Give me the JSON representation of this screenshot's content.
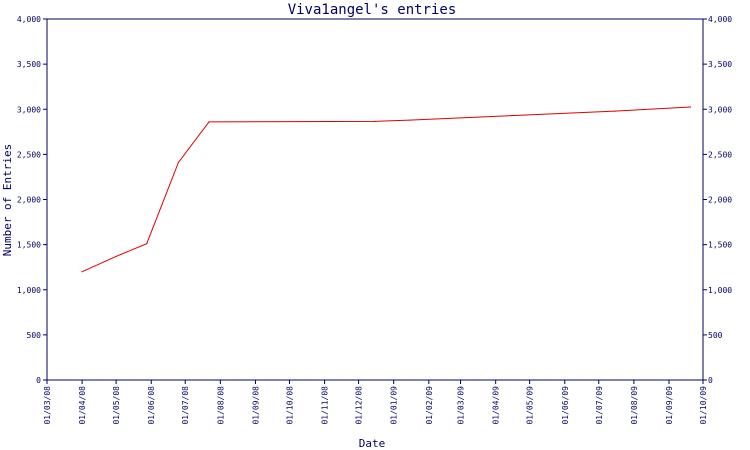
{
  "chart_data": {
    "type": "line",
    "title": "Viva1angel's entries",
    "xlabel": "Date",
    "ylabel": "Number of Entries",
    "ylim": [
      0,
      4000
    ],
    "y_ticks": [
      0,
      500,
      1000,
      1500,
      2000,
      2500,
      3000,
      3500,
      4000
    ],
    "y_tick_labels": [
      "0",
      "500",
      "1,000",
      "1,500",
      "2,000",
      "2,500",
      "3,000",
      "3,500",
      "4,000"
    ],
    "x_ticks": [
      "01/03/08",
      "01/04/08",
      "01/05/08",
      "01/06/08",
      "01/07/08",
      "01/08/08",
      "01/09/08",
      "01/10/08",
      "01/11/08",
      "01/12/08",
      "01/01/09",
      "01/02/09",
      "01/03/09",
      "01/04/09",
      "01/05/09",
      "01/06/09",
      "01/07/09",
      "01/08/09",
      "01/09/09",
      "01/10/09"
    ],
    "grid": false,
    "colors": {
      "line": "#e00000",
      "axis": "#000066",
      "text": "#000066"
    },
    "series": [
      {
        "points": [
          {
            "x": "2008-04-01",
            "y": 1200
          },
          {
            "x": "2008-05-01",
            "y": 1370
          },
          {
            "x": "2008-05-28",
            "y": 1510
          },
          {
            "x": "2008-06-25",
            "y": 2410
          },
          {
            "x": "2008-07-22",
            "y": 2860
          },
          {
            "x": "2008-12-15",
            "y": 2865
          },
          {
            "x": "2009-01-15",
            "y": 2880
          },
          {
            "x": "2009-04-15",
            "y": 2930
          },
          {
            "x": "2009-07-15",
            "y": 2980
          },
          {
            "x": "2009-09-20",
            "y": 3025
          }
        ]
      }
    ]
  }
}
